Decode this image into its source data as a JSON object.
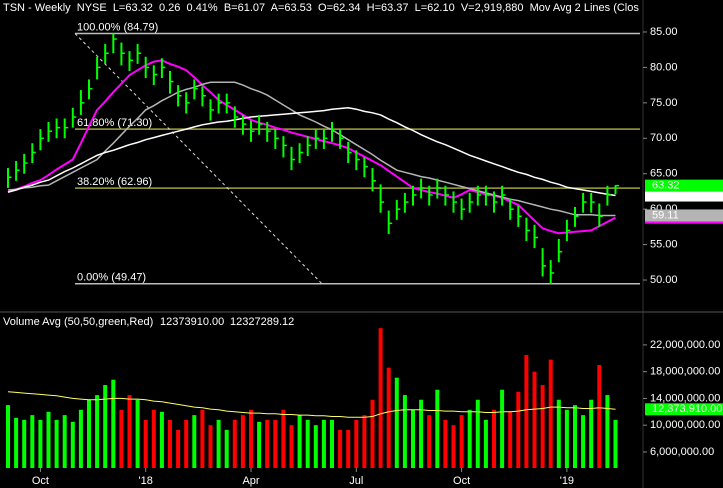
{
  "chart_data": [
    {
      "type": "ohlc",
      "title": "TSN - Weekly  NYSE  L=63.32  0.26  0.41%  B=61.07  A=63.53  O=62.34  H=63.37  L=62.10  V=2,919,880  Mov Avg 2 Lines (Clos",
      "color": "#00ff00",
      "high": [
        65.8,
        66.8,
        67.8,
        69.3,
        71.3,
        72.3,
        72.8,
        72.8,
        74.3,
        76.8,
        78.3,
        81.5,
        83.3,
        84.79,
        83.5,
        82.3,
        83.3,
        81.5,
        80.3,
        81.3,
        79.5,
        77.5,
        76.5,
        78.3,
        77.3,
        75.5,
        76.3,
        76.3,
        74.5,
        73.3,
        72.5,
        73.3,
        72.3,
        71.3,
        70.3,
        68.8,
        69.3,
        70.3,
        71.3,
        71.3,
        72.3,
        71.3,
        69.5,
        68.3,
        67.3,
        65.8,
        63.5,
        59.8,
        61.3,
        62.3,
        63.3,
        64.3,
        63.3,
        64.3,
        63.3,
        62.5,
        61.5,
        62.3,
        63.3,
        63.3,
        62.5,
        63.3,
        61.5,
        60.5,
        58.8,
        57.8,
        54.5,
        52.8,
        55.8,
        58.5,
        60.3,
        62.3,
        62.3,
        60.8,
        63.3,
        63.37
      ],
      "low": [
        63,
        64,
        65,
        66.5,
        68.3,
        69.5,
        70,
        70,
        71.5,
        73.3,
        75.5,
        78.3,
        80.5,
        82,
        80.3,
        79.5,
        80.5,
        78.5,
        77.5,
        78.5,
        76.3,
        74.5,
        73.5,
        75.5,
        74.5,
        72.5,
        73.5,
        73.5,
        71.5,
        70.5,
        69.5,
        70.5,
        69.5,
        68.5,
        67.3,
        65.5,
        66.5,
        67.5,
        68.5,
        68.5,
        69.5,
        68.5,
        66.5,
        65.5,
        64.5,
        62.5,
        59.5,
        56.5,
        58.5,
        59.5,
        60.5,
        61.5,
        60.5,
        61.5,
        60.5,
        59.5,
        58.5,
        59.5,
        60.5,
        60.5,
        59.5,
        60.5,
        58.5,
        57.5,
        55.5,
        54.5,
        50.5,
        49.47,
        52.5,
        55.5,
        57.5,
        59.5,
        59.5,
        57.5,
        60.5,
        62.1
      ],
      "close": [
        64.5,
        65.5,
        66.5,
        68,
        70,
        71,
        71.5,
        71.5,
        73,
        75,
        77,
        80,
        82,
        84,
        82,
        81,
        82,
        80,
        79,
        80,
        78,
        76,
        75,
        77,
        76,
        74,
        75,
        75,
        73,
        72,
        71,
        72,
        71,
        70,
        69,
        67,
        68,
        69,
        70,
        70,
        71,
        70,
        68,
        67,
        66,
        64,
        61,
        58,
        60,
        61,
        62,
        63,
        62,
        63,
        62,
        61,
        60,
        61,
        62,
        62,
        61,
        62,
        60,
        59,
        57,
        56,
        52,
        51,
        54,
        57,
        59,
        61,
        61,
        59,
        62,
        63.32
      ],
      "lines": [
        {
          "color": "#ff00ff",
          "values": [
            62.4,
            62.8,
            63.2,
            63.7,
            64.1,
            64.8,
            65.6,
            66.3,
            67,
            69.3,
            71.7,
            74,
            75.2,
            76.5,
            77.7,
            78.9,
            79.6,
            80.3,
            80.8,
            81,
            80.5,
            80.1,
            79.6,
            78.6,
            77.5,
            76.5,
            75.4,
            74.7,
            74,
            73.3,
            72.6,
            72.2,
            71.9,
            71.5,
            71.2,
            70.8,
            70.5,
            70.2,
            69.9,
            69.6,
            69.3,
            69,
            68.6,
            68,
            67.4,
            66.8,
            66.2,
            65.4,
            64.6,
            63.8,
            63,
            62.7,
            62.4,
            62.2,
            61.9,
            61.6,
            62.1,
            62.7,
            62.4,
            62.1,
            61.9,
            61.6,
            61.1,
            60.6,
            59.5,
            58.4,
            57.3,
            56.9,
            56.6,
            56.7,
            56.8,
            56.9,
            57,
            57.6,
            58.2,
            58.8
          ]
        },
        {
          "color": "#b4b4b4",
          "values": [
            62.7,
            62.8,
            63,
            63.1,
            63.3,
            63.4,
            64,
            64.6,
            65.2,
            65.8,
            66.4,
            67,
            68.2,
            69.3,
            70.5,
            71.7,
            72.8,
            74,
            74.6,
            75.3,
            75.9,
            76.5,
            76.9,
            77.2,
            77.6,
            77.9,
            77.9,
            77.9,
            77.9,
            77.5,
            77,
            76.6,
            76.1,
            75.4,
            74.7,
            74,
            73.3,
            72.8,
            72.3,
            71.7,
            71.2,
            70.5,
            69.8,
            69.1,
            68.4,
            67.7,
            66.9,
            66.2,
            65.5,
            65.2,
            64.9,
            64.6,
            64.4,
            64.1,
            63.8,
            63.5,
            63.2,
            62.9,
            62.6,
            62.3,
            62,
            61.7,
            61.4,
            61.2,
            60.9,
            60.6,
            60.3,
            60,
            59.8,
            59.5,
            59.2,
            59.2,
            59.2,
            59.1,
            59.1,
            59.11
          ]
        },
        {
          "color": "#ffffff",
          "values": [
            62.4,
            62.7,
            63.1,
            63.4,
            63.8,
            64.1,
            64.7,
            65.3,
            65.8,
            66.4,
            67,
            67.6,
            68,
            68.3,
            68.7,
            69.1,
            69.4,
            69.8,
            70.1,
            70.4,
            70.7,
            71,
            71.3,
            71.6,
            71.9,
            72.1,
            72.3,
            72.4,
            72.6,
            72.8,
            73,
            73.1,
            73.2,
            73.3,
            73.4,
            73.5,
            73.6,
            73.7,
            73.8,
            73.9,
            74.1,
            74.2,
            74.3,
            74.1,
            73.8,
            73.6,
            73.3,
            72.7,
            72.2,
            71.6,
            71.1,
            70.5,
            70,
            69.5,
            69.1,
            68.6,
            68.1,
            67.6,
            67.2,
            66.8,
            66.4,
            66,
            65.6,
            65.2,
            64.9,
            64.5,
            64.2,
            63.8,
            63.5,
            63.1,
            62.9,
            62.7,
            62.5,
            62.3,
            62.1,
            61.92
          ]
        }
      ],
      "fib": [
        {
          "label": "100.00% (84.79)",
          "value": 84.79,
          "color": "#bdbdbd"
        },
        {
          "label": "61.80% (71.30)",
          "value": 71.3,
          "color": "#a3a33c"
        },
        {
          "label": "38.20% (62.96)",
          "value": 62.96,
          "color": "#a3a33c"
        },
        {
          "label": "0.00% (49.47)",
          "value": 49.47,
          "color": "#bdbdbd"
        }
      ],
      "ylim": [
        45.77,
        89.23
      ],
      "yticks": [
        {
          "value": 50,
          "label": "50.00"
        },
        {
          "value": 55,
          "label": "55.00"
        },
        {
          "value": 60,
          "label": "60.00"
        },
        {
          "value": 65,
          "label": "65.00"
        },
        {
          "value": 70,
          "label": "70.00"
        },
        {
          "value": 75,
          "label": "75.00"
        },
        {
          "value": 80,
          "label": "80.00"
        },
        {
          "value": 85,
          "label": "85.00"
        }
      ]
    },
    {
      "type": "bar",
      "title": "Volume Avg (50,50,green,Red)",
      "readouts": [
        {
          "text": "12373910.00",
          "color": "#00ff00"
        },
        {
          "text": "12327289.12",
          "color": "#ffff00"
        }
      ],
      "up_color": "#00ff00",
      "down_color": "#ff0000",
      "categories": [
        null,
        null,
        null,
        null,
        "Oct",
        null,
        null,
        null,
        null,
        null,
        null,
        null,
        null,
        null,
        null,
        null,
        null,
        "'18",
        null,
        null,
        null,
        null,
        null,
        null,
        null,
        null,
        null,
        null,
        null,
        null,
        "Apr",
        null,
        null,
        null,
        null,
        null,
        null,
        null,
        null,
        null,
        null,
        null,
        null,
        "Jul",
        null,
        null,
        null,
        null,
        null,
        null,
        null,
        null,
        null,
        null,
        null,
        null,
        "Oct",
        null,
        null,
        null,
        null,
        null,
        null,
        null,
        null,
        null,
        null,
        null,
        null,
        "'19",
        null,
        null,
        null,
        null,
        null,
        null
      ],
      "values": [
        13000000,
        11100000,
        10800000,
        11500000,
        10800000,
        12000000,
        10800000,
        11500000,
        10500000,
        12300000,
        13800000,
        14500000,
        16000000,
        16800000,
        12300000,
        14500000,
        13800000,
        10800000,
        12300000,
        12000000,
        10800000,
        9300000,
        10800000,
        11500000,
        12300000,
        10000000,
        10800000,
        9300000,
        10800000,
        11500000,
        12300000,
        10500000,
        10800000,
        10800000,
        12300000,
        10000000,
        11500000,
        10800000,
        10000000,
        10800000,
        10800000,
        9300000,
        9300000,
        10800000,
        11500000,
        13800000,
        24500000,
        18600000,
        17100000,
        14500000,
        12300000,
        13800000,
        11500000,
        15300000,
        10800000,
        10000000,
        11500000,
        12300000,
        13800000,
        10800000,
        12300000,
        15300000,
        12000000,
        15000000,
        20500000,
        18000000,
        16000000,
        19800000,
        13800000,
        12300000,
        13000000,
        11500000,
        13800000,
        19000000,
        14500000,
        10800000
      ],
      "avg": {
        "color": "#ffff66",
        "values": [
          15000000,
          14900000,
          14800000,
          14700000,
          14600000,
          14500000,
          14400000,
          14200000,
          14000000,
          13900000,
          13800000,
          13800000,
          13900000,
          14000000,
          14000000,
          13900000,
          13900000,
          13800000,
          13600000,
          13500000,
          13300000,
          13100000,
          12900000,
          12700000,
          12600000,
          12400000,
          12300000,
          12100000,
          12000000,
          11900000,
          11800000,
          11800000,
          11700000,
          11700000,
          11600000,
          11600000,
          11500000,
          11500000,
          11400000,
          11400000,
          11300000,
          11300000,
          11200000,
          11200000,
          11200000,
          11300000,
          11700000,
          12000000,
          12200000,
          12300000,
          12300000,
          12300000,
          12200000,
          12200000,
          12100000,
          12100000,
          12000000,
          12000000,
          12000000,
          11900000,
          11900000,
          12000000,
          12000000,
          12100000,
          12300000,
          12400000,
          12500000,
          12700000,
          12700000,
          12600000,
          12600000,
          12500000,
          12500000,
          12600000,
          12500000,
          12373910
        ],
        "tag": {
          "value": 12373910,
          "label": "12,373,910.00"
        }
      },
      "ylim": [
        3600000,
        26470000
      ],
      "yticks": [
        {
          "value": 6000000,
          "label": "6,000,000.00"
        },
        {
          "value": 10000000,
          "label": "10,000,000.00"
        },
        {
          "value": 14000000,
          "label": "14,000,000.00"
        },
        {
          "value": 18000000,
          "label": "18,000,000.00"
        },
        {
          "value": 22000000,
          "label": "22,000,000.00"
        }
      ]
    }
  ]
}
